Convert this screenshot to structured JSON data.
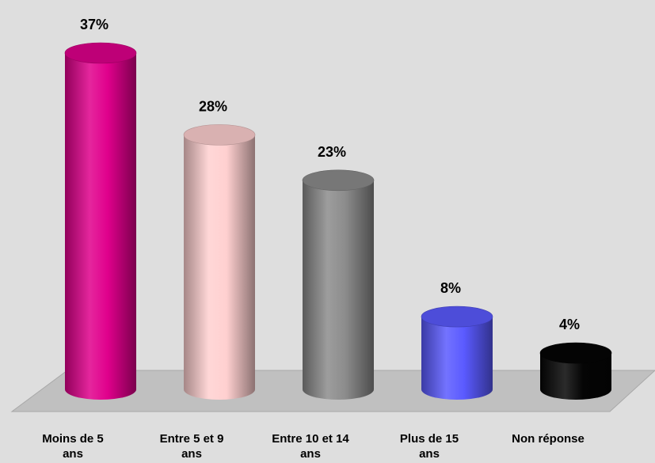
{
  "chart_data": {
    "type": "bar",
    "style": "3d-cylinder",
    "categories": [
      [
        "Moins de 5",
        "ans"
      ],
      [
        "Entre 5 et 9",
        "ans"
      ],
      [
        "Entre 10 et 14",
        "ans"
      ],
      [
        "Plus de 15",
        "ans"
      ],
      [
        "Non réponse"
      ]
    ],
    "values": [
      37,
      28,
      23,
      8,
      4
    ],
    "value_labels": [
      "37%",
      "28%",
      "23%",
      "8%",
      "4%"
    ],
    "colors": [
      "#e0008c",
      "#ffd0d0",
      "#8c8c8c",
      "#5a5aff",
      "#050505"
    ],
    "ylim": [
      0,
      37
    ],
    "grid": false,
    "legend": "none"
  }
}
